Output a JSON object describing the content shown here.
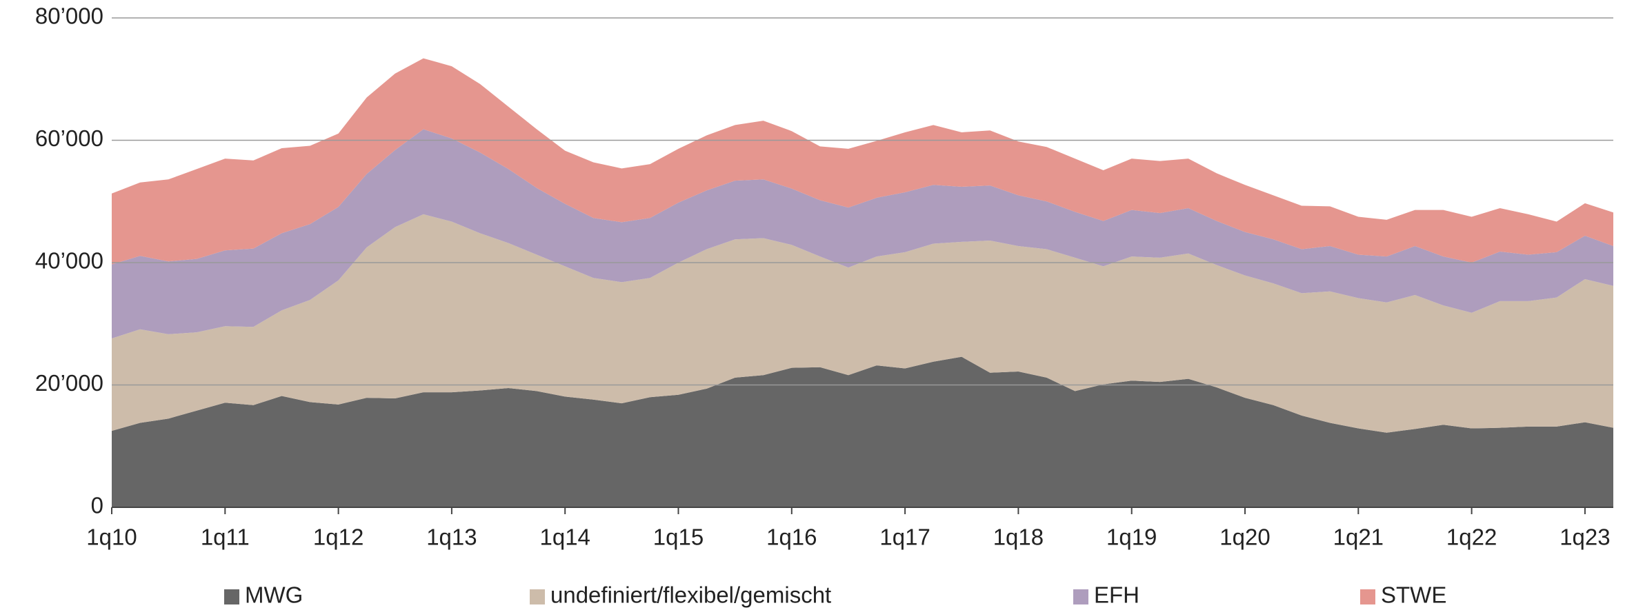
{
  "chart_data": {
    "type": "stacked-area",
    "categories": [
      "1q10",
      null,
      null,
      null,
      "1q11",
      null,
      null,
      null,
      "1q12",
      null,
      null,
      null,
      "1q13",
      null,
      null,
      null,
      "1q14",
      null,
      null,
      null,
      "1q15",
      null,
      null,
      null,
      "1q16",
      null,
      null,
      null,
      "1q17",
      null,
      null,
      null,
      "1q18",
      null,
      null,
      null,
      "1q19",
      null,
      null,
      null,
      "1q20",
      null,
      null,
      null,
      "1q21",
      null,
      null,
      null,
      "1q22",
      null,
      null,
      null,
      "1q23",
      null
    ],
    "series": [
      {
        "name": "MWG",
        "color": "#666666",
        "values": [
          12500,
          13800,
          14500,
          15800,
          17100,
          16700,
          18200,
          17200,
          16800,
          17900,
          17800,
          18800,
          18800,
          19100,
          19500,
          19000,
          18100,
          17600,
          17000,
          18000,
          18400,
          19400,
          21200,
          21600,
          22800,
          22900,
          21600,
          23200,
          22700,
          23800,
          24600,
          22000,
          22200,
          21200,
          19000,
          20100,
          20700,
          20500,
          21000,
          19600,
          17900,
          16700,
          15000,
          13800,
          12900,
          12200,
          12800,
          13500,
          12900,
          13000,
          13200,
          13200,
          13900,
          13000
        ]
      },
      {
        "name": "undefiniert/flexibel/gemischt",
        "color": "#cdbcaa",
        "values": [
          15100,
          15300,
          13800,
          12800,
          12500,
          12800,
          14000,
          16700,
          20300,
          24600,
          28000,
          29100,
          27900,
          25700,
          23700,
          22300,
          21300,
          19900,
          19800,
          19500,
          21600,
          22800,
          22600,
          22400,
          20100,
          18100,
          17600,
          17800,
          19000,
          19300,
          18800,
          21600,
          20500,
          21000,
          21800,
          19300,
          20300,
          20300,
          20500,
          20000,
          20000,
          19900,
          20000,
          21500,
          21300,
          21300,
          21900,
          19500,
          18900,
          20700,
          20500,
          21100,
          23400,
          23200
        ]
      },
      {
        "name": "EFH",
        "color": "#ae9dbd",
        "values": [
          12100,
          12000,
          11900,
          12000,
          12400,
          12800,
          12600,
          12400,
          12000,
          12000,
          12600,
          13900,
          13600,
          13200,
          12100,
          10900,
          10200,
          9800,
          9800,
          9800,
          9800,
          9600,
          9600,
          9600,
          9200,
          9200,
          9800,
          9600,
          9800,
          9600,
          9000,
          9000,
          8300,
          7800,
          7500,
          7400,
          7600,
          7300,
          7400,
          7200,
          7100,
          7200,
          7200,
          7400,
          7100,
          7500,
          8000,
          8000,
          8200,
          8100,
          7600,
          7400,
          7100,
          6500
        ]
      },
      {
        "name": "STWE",
        "color": "#e5968f",
        "values": [
          11600,
          12000,
          13400,
          14700,
          15000,
          14400,
          13900,
          12800,
          12000,
          12500,
          12500,
          11600,
          11800,
          11200,
          10200,
          9600,
          8700,
          9100,
          8800,
          8800,
          8800,
          9000,
          9100,
          9600,
          9400,
          8800,
          9600,
          9300,
          9800,
          9800,
          8900,
          9000,
          8800,
          8900,
          8700,
          8300,
          8400,
          8500,
          8100,
          7800,
          7700,
          7200,
          7100,
          6500,
          6200,
          6000,
          5900,
          7600,
          7500,
          7100,
          6600,
          5000,
          5300,
          5500
        ]
      }
    ],
    "ylim": [
      0,
      80000
    ],
    "yticks": [
      0,
      {
        "value": 20000,
        "label": "20’000"
      },
      {
        "value": 40000,
        "label": "40’000"
      },
      {
        "value": 60000,
        "label": "60’000"
      },
      {
        "value": 80000,
        "label": "80’000"
      }
    ],
    "grid": true,
    "legend": "bottom"
  }
}
